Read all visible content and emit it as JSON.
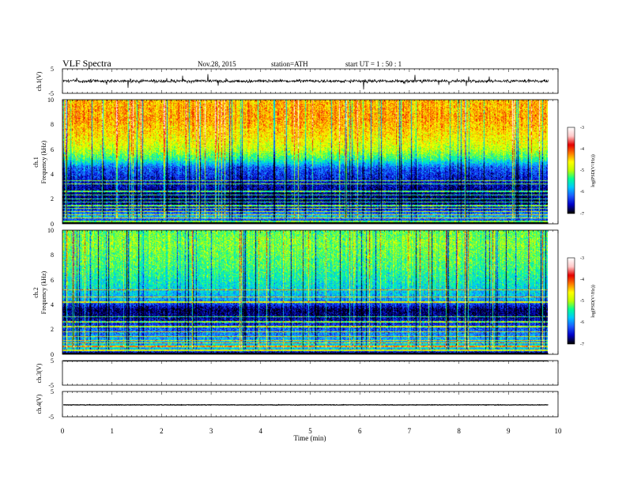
{
  "header": {
    "title": "VLF Spectra",
    "date": "Nov.28, 2015",
    "station": "station=ATH",
    "start": "start UT = 1 : 50 : 1"
  },
  "colors": {
    "background": "#ffffff",
    "trace": "#000000",
    "colormap": [
      "#000000",
      "#0000c8",
      "#1e5aff",
      "#00c8ff",
      "#00ff9a",
      "#bfff00",
      "#ffff00",
      "#ff7a00",
      "#e60000",
      "#ffc8c8",
      "#ffffff"
    ]
  },
  "chart_data": [
    {
      "type": "line",
      "panel": "ch1-waveform",
      "ylabel": "ch.1(V)",
      "y_ticks": [
        "5",
        "-5"
      ],
      "ylim": [
        -5,
        5
      ],
      "xlim": [
        0,
        10
      ],
      "trace_end_min": 9.8,
      "level_V": 0.0,
      "noise_amplitude_V": 1.2,
      "spike_amplitude_V": 3.5
    },
    {
      "type": "heatmap",
      "panel": "ch1-spectrogram",
      "ylabel_line1": "ch.1",
      "ylabel_line2": "Frequency (kHz)",
      "y_ticks": [
        "10",
        "8",
        "6",
        "4",
        "2",
        "0"
      ],
      "ylim": [
        0,
        10
      ],
      "xlim": [
        0,
        10
      ],
      "data_end_min": 9.8,
      "colorbar": {
        "label": "log(PSD(V²/Hz))",
        "ticks": [
          "-3",
          "-4",
          "-5",
          "-6",
          "-7"
        ],
        "range": [
          -7,
          -3
        ]
      },
      "description_profile_khz_to_logpsd": [
        [
          0,
          -6.9
        ],
        [
          0.5,
          -5.8
        ],
        [
          1.0,
          -6.3
        ],
        [
          1.8,
          -6.8
        ],
        [
          2.6,
          -6.7
        ],
        [
          3.5,
          -6.5
        ],
        [
          4.5,
          -6.2
        ],
        [
          5.2,
          -5.4
        ],
        [
          6.0,
          -4.9
        ],
        [
          7.0,
          -4.6
        ],
        [
          8.5,
          -4.3
        ],
        [
          10,
          -4.4
        ]
      ],
      "horizontal_lines_khz": [
        0.15,
        0.45,
        0.7,
        0.95,
        1.2,
        1.45,
        1.75,
        2.0,
        2.3,
        2.6,
        3.2,
        3.45
      ]
    },
    {
      "type": "heatmap",
      "panel": "ch2-spectrogram",
      "ylabel_line1": "ch.2",
      "ylabel_line2": "Frequency (kHz)",
      "y_ticks": [
        "10",
        "8",
        "6",
        "4",
        "2",
        "0"
      ],
      "ylim": [
        0,
        10
      ],
      "xlim": [
        0,
        10
      ],
      "data_end_min": 9.8,
      "colorbar": {
        "label": "log(PSD(V²/Hz))",
        "ticks": [
          "-3",
          "-4",
          "-5",
          "-6",
          "-7"
        ],
        "range": [
          -7,
          -3
        ]
      },
      "description_profile_khz_to_logpsd": [
        [
          0,
          -6.9
        ],
        [
          0.5,
          -5.6
        ],
        [
          1.2,
          -5.9
        ],
        [
          2.0,
          -6.2
        ],
        [
          3.0,
          -6.7
        ],
        [
          3.6,
          -6.8
        ],
        [
          4.4,
          -5.9
        ],
        [
          5.5,
          -5.6
        ],
        [
          7.0,
          -5.3
        ],
        [
          9.0,
          -5.1
        ],
        [
          10,
          -5.2
        ]
      ],
      "horizontal_lines_khz": [
        0.3,
        0.6,
        0.9,
        1.1,
        1.4,
        1.8,
        2.2,
        2.6,
        3.0,
        4.2,
        4.6,
        5.2
      ]
    },
    {
      "type": "line",
      "panel": "ch3-waveform",
      "ylabel": "ch.3(V)",
      "y_ticks": [
        "5",
        "-5"
      ],
      "ylim": [
        -5,
        5
      ],
      "xlim": [
        0,
        10
      ],
      "trace_end_min": 9.8,
      "level_V": 5.0,
      "noise_amplitude_V": 0.0,
      "spike_amplitude_V": 0.0
    },
    {
      "type": "line",
      "panel": "ch4-waveform",
      "ylabel": "ch.4(V)",
      "y_ticks": [
        "5",
        "-5"
      ],
      "ylim": [
        -5,
        5
      ],
      "xlim": [
        0,
        10
      ],
      "trace_end_min": 9.8,
      "level_V": -0.3,
      "noise_amplitude_V": 0.2,
      "spike_amplitude_V": 0.0
    }
  ],
  "x_axis": {
    "label": "Time (min)",
    "ticks": [
      "0",
      "1",
      "2",
      "3",
      "4",
      "5",
      "6",
      "7",
      "8",
      "9",
      "10"
    ],
    "range": [
      0,
      10
    ]
  }
}
